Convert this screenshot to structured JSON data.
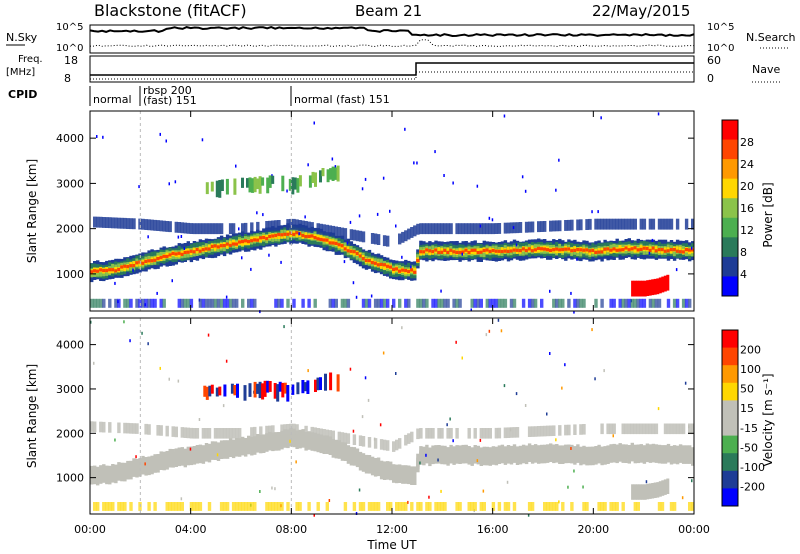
{
  "header": {
    "title": "Blackstone (fitACF)",
    "beam": "Beam 21",
    "date": "22/May/2015"
  },
  "noise_panel": {
    "left_label": "N.Sky",
    "right_label": "N.Search",
    "left_ticks": [
      "10^5",
      "10^0"
    ],
    "right_ticks": [
      "10^5",
      "10^0"
    ]
  },
  "freq_panel": {
    "left_label_1": "Freq.",
    "left_label_2": "[MHz]",
    "right_label": "Nave",
    "left_ticks": [
      "18",
      "8"
    ],
    "right_ticks": [
      "60",
      "0"
    ]
  },
  "cpid": {
    "label": "CPID",
    "segments": [
      {
        "start_hour": 0,
        "text": "normal"
      },
      {
        "start_hour": 2,
        "text": "rbsp 200",
        "text2": "(fast) 151"
      },
      {
        "start_hour": 8,
        "text": "normal (fast) 151"
      }
    ]
  },
  "x_axis": {
    "label": "Time UT",
    "ticks": [
      "00:00",
      "04:00",
      "08:00",
      "12:00",
      "16:00",
      "20:00",
      "00:00"
    ]
  },
  "power_panel": {
    "ylabel": "Slant Range [km]",
    "yticks": [
      "4000",
      "3000",
      "2000",
      "1000"
    ],
    "colorbar_label": "Power [dB]",
    "colorbar_ticks": [
      "28",
      "24",
      "20",
      "16",
      "12",
      "8",
      "4"
    ],
    "colors": [
      "#0000ff",
      "#1e3c96",
      "#2a7a5a",
      "#4caf50",
      "#8bc34a",
      "#ffd700",
      "#ff9900",
      "#ff4500",
      "#ff0000"
    ]
  },
  "velocity_panel": {
    "ylabel": "Slant Range [km]",
    "yticks": [
      "4000",
      "3000",
      "2000",
      "1000"
    ],
    "colorbar_label": "Velocity [m s⁻¹]",
    "colorbar_ticks": [
      "200",
      "100",
      "50",
      "15",
      "-15",
      "-50",
      "-100",
      "-200"
    ],
    "colors": [
      "#0000ff",
      "#1e3c96",
      "#2a7a5a",
      "#4caf50",
      "#c0c0b8",
      "#c0c0b8",
      "#ffd700",
      "#ff9900",
      "#ff4500",
      "#ff0000"
    ]
  },
  "chart_data": {
    "type": "heatmap",
    "x_range_hours": [
      0,
      24
    ],
    "y_range_km": [
      180,
      4600
    ],
    "power_bands": [
      {
        "name": "main",
        "points": [
          [
            0,
            1050
          ],
          [
            1,
            1100
          ],
          [
            2,
            1250
          ],
          [
            3,
            1400
          ],
          [
            4,
            1500
          ],
          [
            5,
            1600
          ],
          [
            6,
            1700
          ],
          [
            7,
            1800
          ],
          [
            8,
            1900
          ],
          [
            9,
            1800
          ],
          [
            10,
            1600
          ],
          [
            11,
            1300
          ],
          [
            12,
            1100
          ],
          [
            12.9,
            1050
          ],
          [
            13,
            1500
          ],
          [
            14,
            1500
          ],
          [
            16,
            1500
          ],
          [
            18,
            1550
          ],
          [
            20,
            1500
          ],
          [
            21,
            1550
          ],
          [
            22,
            1550
          ],
          [
            24,
            1500
          ]
        ]
      },
      {
        "name": "upper",
        "points": [
          [
            0,
            2150
          ],
          [
            2,
            2100
          ],
          [
            4,
            2000
          ],
          [
            6,
            2000
          ],
          [
            8,
            2100
          ],
          [
            10,
            1900
          ],
          [
            12,
            1700
          ],
          [
            13,
            2000
          ],
          [
            16,
            2000
          ],
          [
            20,
            2100
          ],
          [
            24,
            2100
          ]
        ]
      },
      {
        "name": "late-patch",
        "points": [
          [
            21.5,
            650
          ],
          [
            22,
            650
          ],
          [
            22.5,
            700
          ],
          [
            23,
            800
          ]
        ]
      }
    ],
    "velocity_features": [
      {
        "name": "high-echoes",
        "points": [
          [
            5,
            2900
          ],
          [
            6,
            2950
          ],
          [
            7,
            3000
          ],
          [
            8,
            2950
          ],
          [
            9,
            3100
          ],
          [
            9.5,
            3200
          ]
        ]
      },
      {
        "name": "ground-scatter-band",
        "points": [
          [
            0,
            1200
          ],
          [
            4,
            1600
          ],
          [
            8,
            1900
          ],
          [
            10,
            1500
          ],
          [
            12,
            1100
          ],
          [
            13,
            1500
          ],
          [
            24,
            1500
          ]
        ]
      }
    ],
    "freq_mhz": {
      "before": 10,
      "after": 14,
      "change_hour": 13
    },
    "nave": {
      "before": 0,
      "after": 30,
      "change_hour": 13
    }
  }
}
